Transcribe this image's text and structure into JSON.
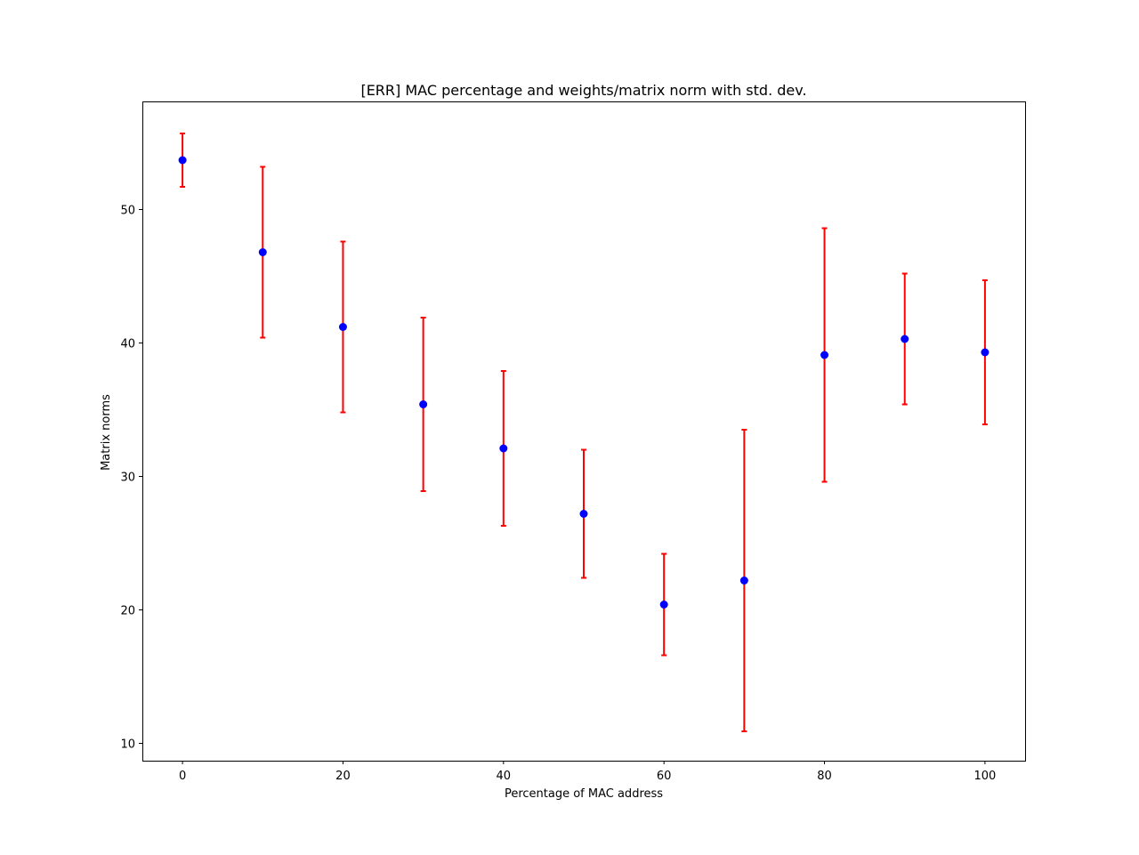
{
  "chart_data": {
    "type": "scatter",
    "title": "[ERR] MAC percentage and weights/matrix norm with std. dev.",
    "xlabel": "Percentage of MAC address",
    "ylabel": "Matrix norms",
    "xlim": [
      -5,
      105
    ],
    "ylim": [
      8.7,
      58.1
    ],
    "xticks": [
      0,
      20,
      40,
      60,
      80,
      100
    ],
    "yticks": [
      10,
      20,
      30,
      40,
      50
    ],
    "grid": false,
    "series": [
      {
        "marker_color": "#0000ff",
        "errorbar_color": "#ff0000",
        "points": [
          {
            "x": 0,
            "y": 53.7,
            "err_low": 2.0,
            "err_high": 2.0
          },
          {
            "x": 10,
            "y": 46.8,
            "err_low": 6.4,
            "err_high": 6.4
          },
          {
            "x": 20,
            "y": 41.2,
            "err_low": 6.4,
            "err_high": 6.4
          },
          {
            "x": 30,
            "y": 35.4,
            "err_low": 6.5,
            "err_high": 6.5
          },
          {
            "x": 40,
            "y": 32.1,
            "err_low": 5.8,
            "err_high": 5.8
          },
          {
            "x": 50,
            "y": 27.2,
            "err_low": 4.8,
            "err_high": 4.8
          },
          {
            "x": 60,
            "y": 20.4,
            "err_low": 3.8,
            "err_high": 3.8
          },
          {
            "x": 70,
            "y": 22.2,
            "err_low": 11.3,
            "err_high": 11.3
          },
          {
            "x": 80,
            "y": 39.1,
            "err_low": 9.5,
            "err_high": 9.5
          },
          {
            "x": 90,
            "y": 40.3,
            "err_low": 4.9,
            "err_high": 4.9
          },
          {
            "x": 100,
            "y": 39.3,
            "err_low": 5.4,
            "err_high": 5.4
          }
        ]
      }
    ]
  }
}
